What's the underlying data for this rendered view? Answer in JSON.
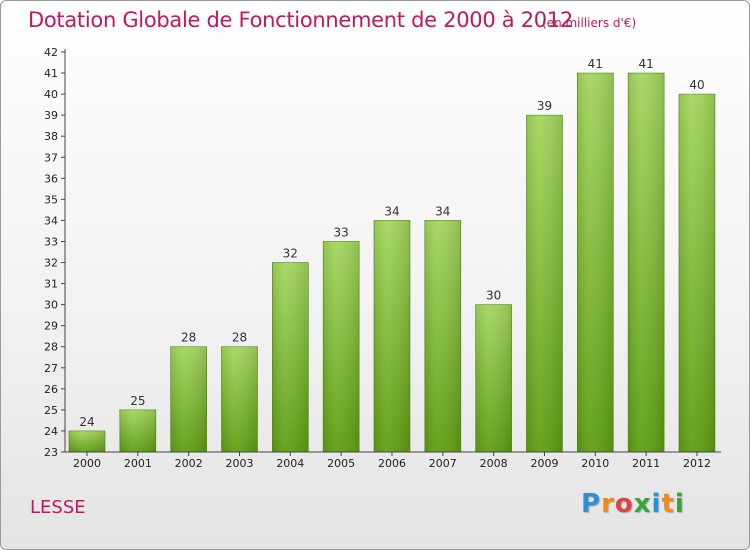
{
  "title": "Dotation Globale de Fonctionnement de 2000 à 2012",
  "unit_note": "(en milliers d'€)",
  "commune": "LESSE",
  "logo": {
    "letters": [
      "P",
      "r",
      "o",
      "x",
      "i",
      "t",
      "i"
    ],
    "colors": [
      "#2d8fd4",
      "#f08a1c",
      "#e04040",
      "#3aa53a",
      "#2d8fd4",
      "#f08a1c",
      "#3aa53a"
    ]
  },
  "colors": {
    "title": "#c2185b",
    "bar_top": "#a4d65e",
    "bar_bottom": "#5e9e12"
  },
  "chart_data": {
    "type": "bar",
    "title": "Dotation Globale de Fonctionnement de 2000 à 2012",
    "subtitle": "(en milliers d'€)",
    "categories": [
      "2000",
      "2001",
      "2002",
      "2003",
      "2004",
      "2005",
      "2006",
      "2007",
      "2008",
      "2009",
      "2010",
      "2011",
      "2012"
    ],
    "values": [
      24,
      25,
      28,
      28,
      32,
      33,
      34,
      34,
      30,
      39,
      41,
      41,
      40
    ],
    "ylim": [
      23,
      42
    ],
    "yticks": [
      23,
      24,
      25,
      26,
      27,
      28,
      29,
      30,
      31,
      32,
      33,
      34,
      35,
      36,
      37,
      38,
      39,
      40,
      41,
      42
    ],
    "grid": false,
    "xlabel": "",
    "ylabel": ""
  }
}
